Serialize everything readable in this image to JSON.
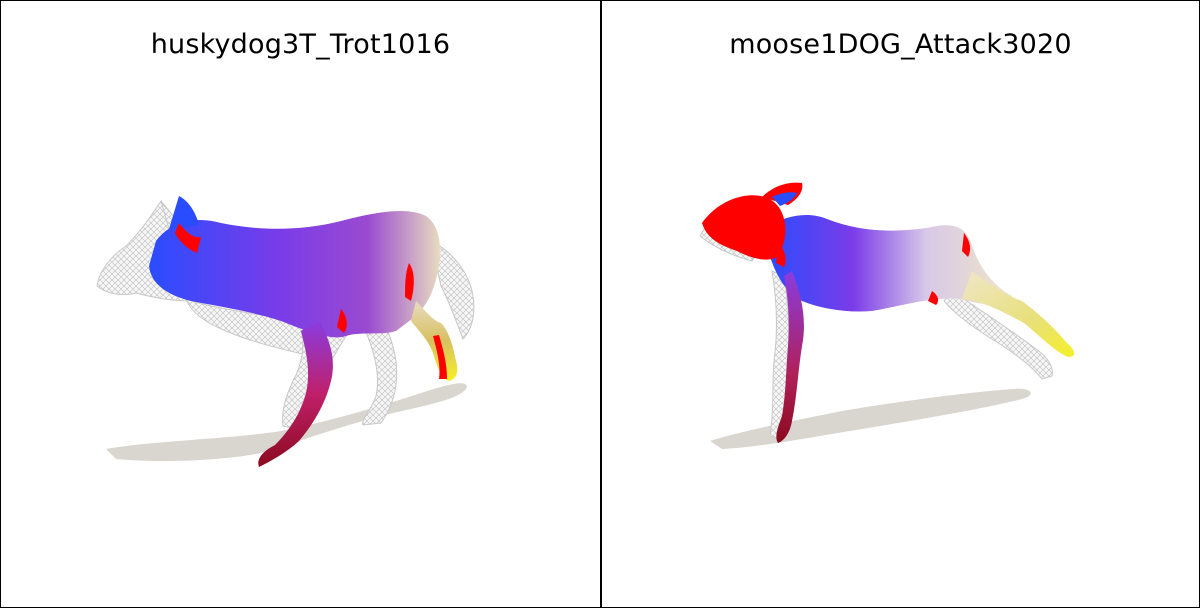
{
  "panels": [
    {
      "title": "huskydog3T_Trot1016",
      "subject": "husky dog mesh, trot pose, correspondence color map"
    },
    {
      "title": "moose1DOG_Attack3020",
      "subject": "moose mesh, attack pose, correspondence color map"
    }
  ],
  "colors": {
    "shadow": "#d9d6cf",
    "wire": "#bfbfbf",
    "map_blue": "#2a4cff",
    "map_purple": "#8a3ce0",
    "map_red": "#ff0000",
    "map_dark_red": "#8b0a1e",
    "map_cream": "#efe6c8",
    "map_yellow": "#f5f028"
  }
}
